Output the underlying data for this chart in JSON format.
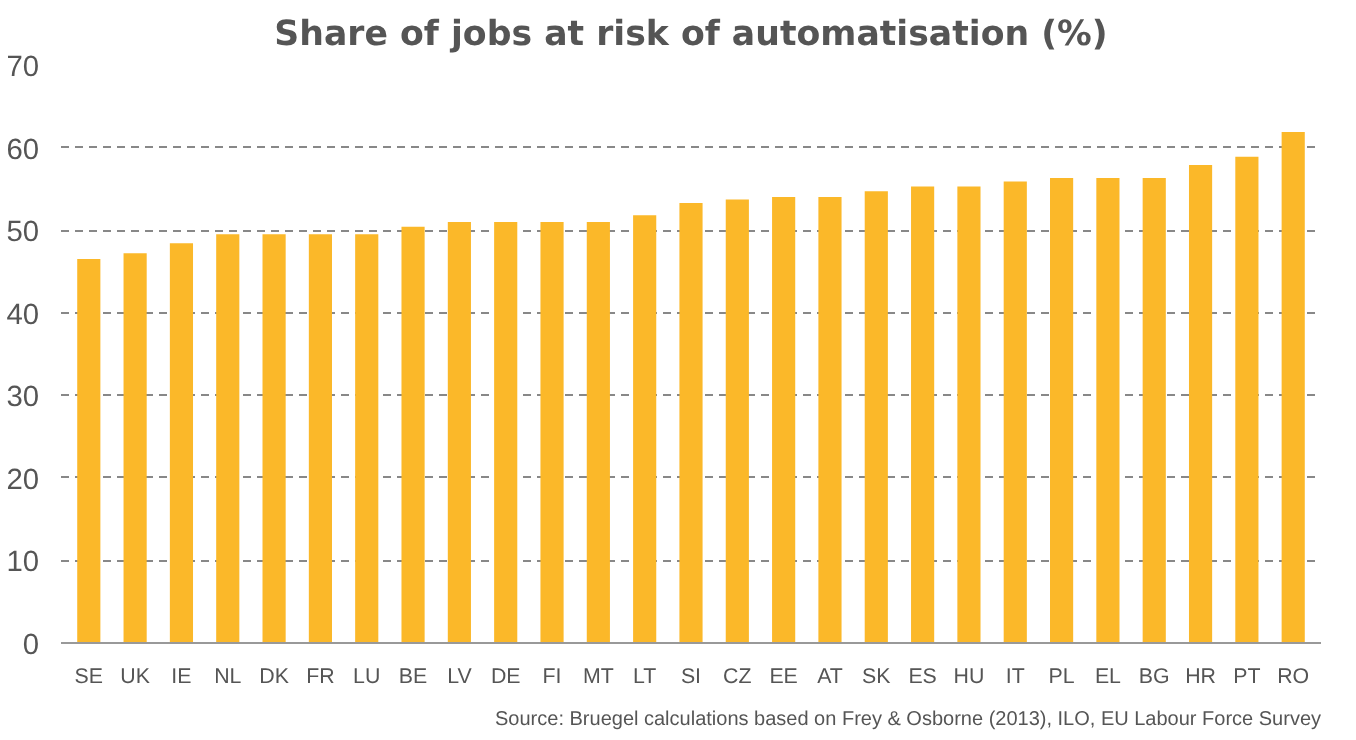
{
  "chart_data": {
    "type": "bar",
    "title": "Share of jobs at risk of automatisation (%)",
    "categories": [
      "SE",
      "UK",
      "IE",
      "NL",
      "DK",
      "FR",
      "LU",
      "BE",
      "LV",
      "DE",
      "FI",
      "MT",
      "LT",
      "SI",
      "CZ",
      "EE",
      "AT",
      "SK",
      "ES",
      "HU",
      "IT",
      "PL",
      "EL",
      "BG",
      "HR",
      "PT",
      "RO"
    ],
    "values": [
      46.5,
      47.2,
      48.4,
      49.5,
      49.5,
      49.5,
      49.5,
      50.4,
      51.0,
      51.0,
      51.0,
      51.0,
      51.8,
      53.3,
      53.7,
      54.0,
      54.0,
      54.7,
      55.3,
      55.3,
      55.9,
      56.3,
      56.3,
      56.3,
      57.9,
      58.9,
      61.9
    ],
    "color": "#fbb829",
    "ylim": [
      0,
      70
    ],
    "yticks": [
      0,
      10,
      20,
      30,
      40,
      50,
      60,
      70
    ],
    "grid": "y",
    "annotations": [
      "Source: Bruegel calculations based on Frey & Osborne (2013), ILO, EU Labour Force Survey"
    ]
  }
}
